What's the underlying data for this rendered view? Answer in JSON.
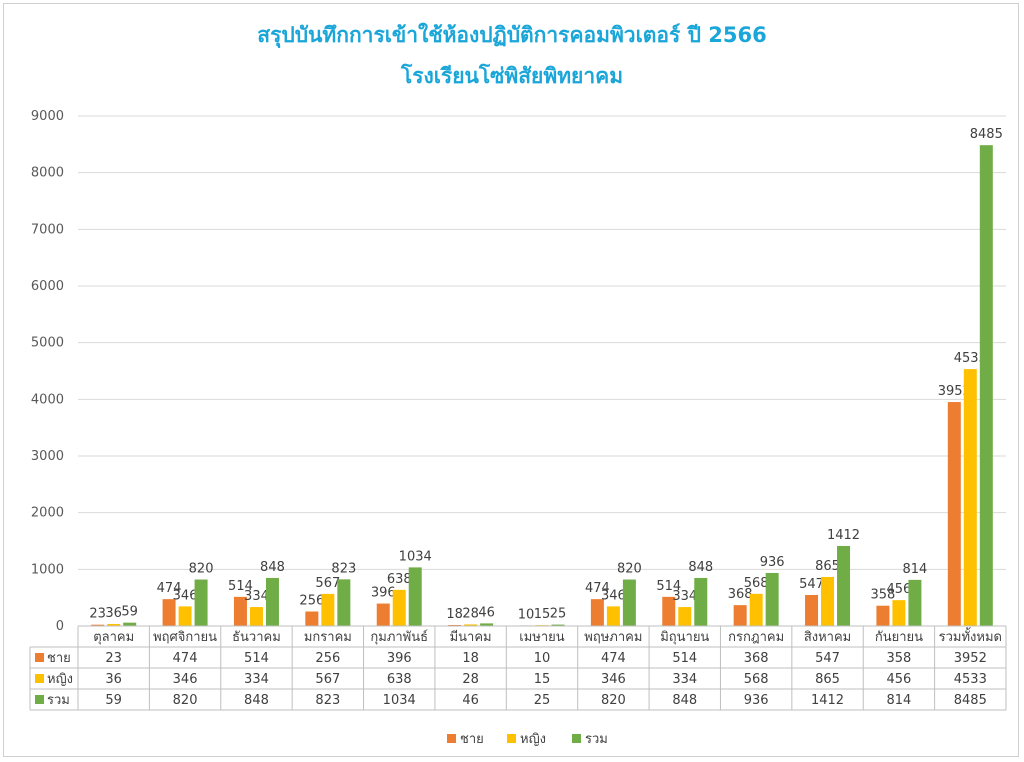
{
  "chart_data": {
    "type": "bar",
    "title": "สรุปบันทึกการเข้าใช้ห้องปฏิบัติการคอมพิวเตอร์ ปี 2566",
    "subtitle": "โรงเรียนโซ่พิสัยพิทยาคม",
    "categories": [
      "ตุลาคม",
      "พฤศจิกายน",
      "ธันวาคม",
      "มกราคม",
      "กุมภาพันธ์",
      "มีนาคม",
      "เมษายน",
      "พฤษภาคม",
      "มิถุนายน",
      "กรกฎาคม",
      "สิงหาคม",
      "กันยายน",
      "รวมทั้งหมด"
    ],
    "series": [
      {
        "name": "ชาย",
        "color": "#ed7d31",
        "values": [
          23,
          474,
          514,
          256,
          396,
          18,
          10,
          474,
          514,
          368,
          547,
          358,
          3952
        ]
      },
      {
        "name": "หญิง",
        "color": "#ffc000",
        "values": [
          36,
          346,
          334,
          567,
          638,
          28,
          15,
          346,
          334,
          568,
          865,
          456,
          4533
        ]
      },
      {
        "name": "รวม",
        "color": "#70ad47",
        "values": [
          59,
          820,
          848,
          823,
          1034,
          46,
          25,
          820,
          848,
          936,
          1412,
          814,
          8485
        ]
      }
    ],
    "ylim": [
      0,
      9000
    ],
    "yticks": [
      0,
      1000,
      2000,
      3000,
      4000,
      5000,
      6000,
      7000,
      8000,
      9000
    ],
    "grid": true,
    "legend": "bottom",
    "data_table": true
  }
}
